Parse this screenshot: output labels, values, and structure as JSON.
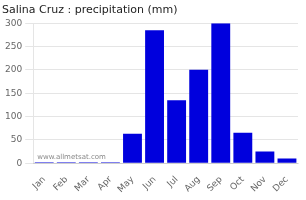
{
  "chart_data": {
    "type": "bar",
    "title": "Salina Cruz : precipitation (mm)",
    "categories": [
      "Jan",
      "Feb",
      "Mar",
      "Apr",
      "May",
      "Jun",
      "Jul",
      "Aug",
      "Sep",
      "Oct",
      "Nov",
      "Dec"
    ],
    "values": [
      2,
      2,
      2,
      2,
      63,
      285,
      135,
      200,
      300,
      65,
      25,
      10
    ],
    "color": "#0000DD",
    "ylim": [
      0,
      300
    ],
    "yticks": [
      0,
      50,
      100,
      150,
      200,
      250,
      300
    ],
    "grid": true,
    "annotations": [
      "www.allmetsat.com"
    ]
  }
}
